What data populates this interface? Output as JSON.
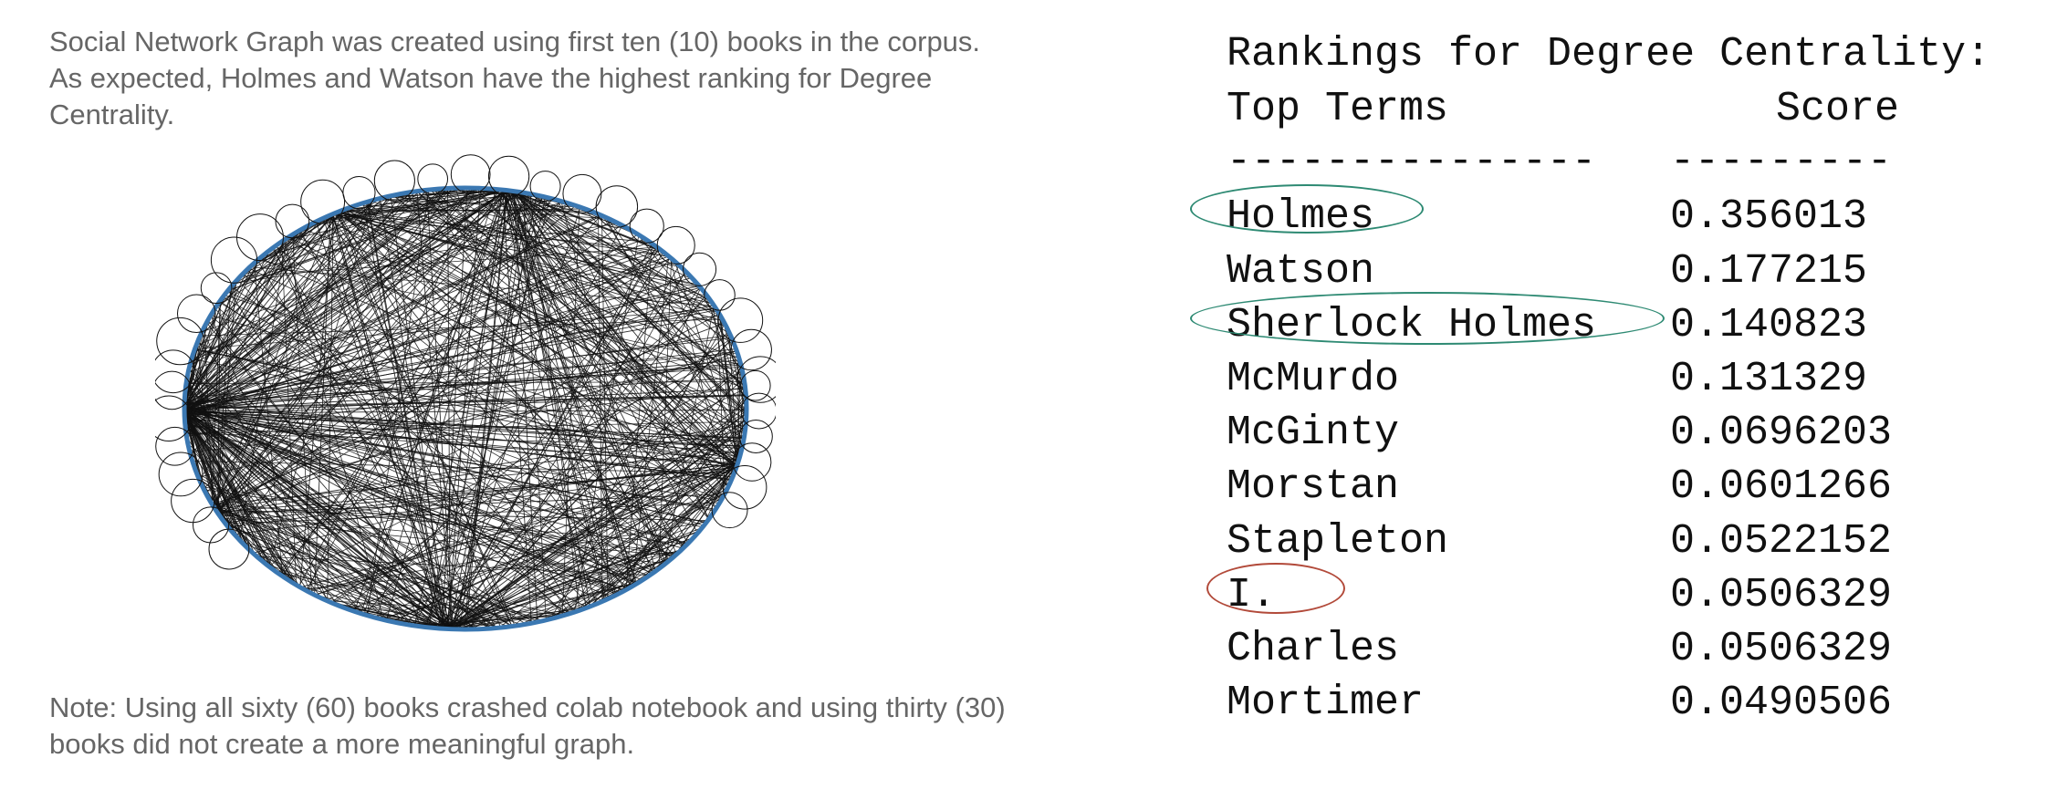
{
  "intro": "Social Network Graph was created using first ten (10) books in the corpus. As expected, Holmes and Watson have the highest ranking for Degree Centrality.",
  "note": "Note: Using all sixty (60) books crashed colab notebook and using thirty (30) books did not create a more meaningful graph.",
  "graph": {
    "edge_color": "#111111",
    "ring_color": "#3b78b2",
    "self_loop_color": "#111111"
  },
  "rankings": {
    "title": "Rankings for Degree Centrality:",
    "col_term": "Top Terms",
    "col_score": "Score",
    "rule_term": "---------------",
    "rule_score": "---------",
    "rows": [
      {
        "term": "Holmes",
        "score": "0.356013"
      },
      {
        "term": "Watson",
        "score": "0.177215"
      },
      {
        "term": "Sherlock Holmes",
        "score": "0.140823"
      },
      {
        "term": "McMurdo",
        "score": "0.131329"
      },
      {
        "term": "McGinty",
        "score": "0.0696203"
      },
      {
        "term": "Morstan",
        "score": "0.0601266"
      },
      {
        "term": "Stapleton",
        "score": "0.0522152"
      },
      {
        "term": "I.",
        "score": "0.0506329"
      },
      {
        "term": "Charles",
        "score": "0.0506329"
      },
      {
        "term": "Mortimer",
        "score": "0.0490506"
      }
    ]
  },
  "highlights": {
    "green": "#2e8a73",
    "red": "#b24a3a"
  }
}
